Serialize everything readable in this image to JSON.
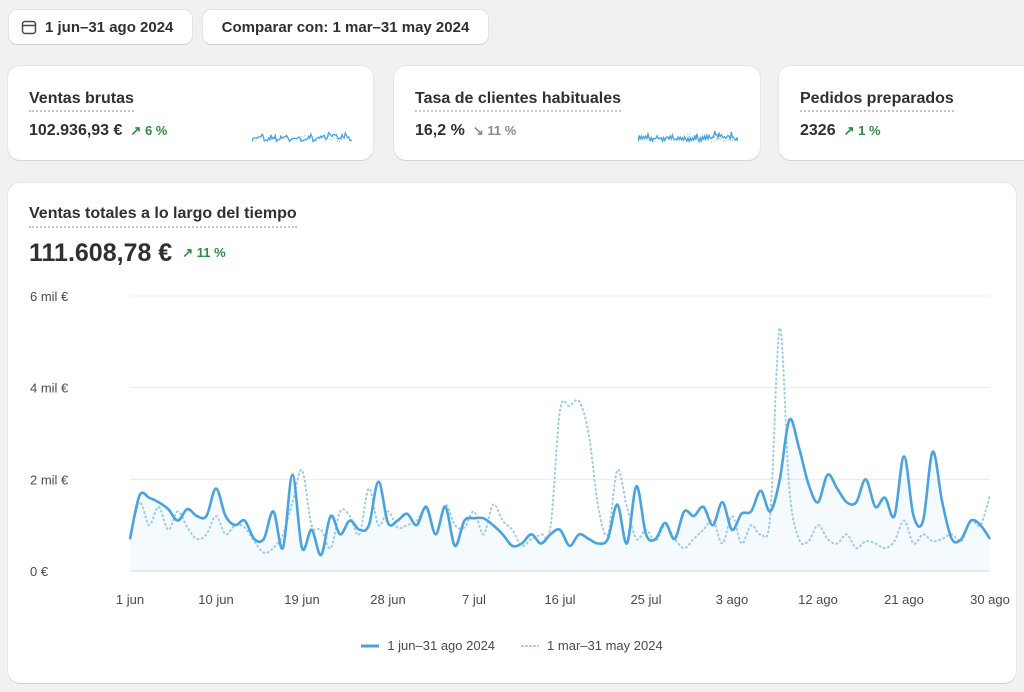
{
  "filters": {
    "date_range": "1 jun–31 ago 2024",
    "compare": "Comparar con: 1 mar–31 may 2024"
  },
  "kpis": [
    {
      "label": "Ventas brutas",
      "value": "102.936,93 €",
      "delta": "6 %",
      "trend": "up"
    },
    {
      "label": "Tasa de clientes habituales",
      "value": "16,2 %",
      "delta": "11 %",
      "trend": "down"
    },
    {
      "label": "Pedidos preparados",
      "value": "2326",
      "delta": "1 %",
      "trend": "up"
    }
  ],
  "main_chart": {
    "title": "Ventas totales a lo largo del tiempo",
    "total": "111.608,78 €",
    "delta": "11 %",
    "trend": "up"
  },
  "colors": {
    "primary": "#4aa3e0",
    "comparison": "#9ccbe8",
    "positive": "#2e8b47",
    "neutral": "#8a8a8a"
  },
  "chart_data": {
    "type": "line",
    "ylim": [
      0,
      6000
    ],
    "y_ticks": [
      "0 €",
      "2 mil €",
      "4 mil €",
      "6 mil €"
    ],
    "y_tick_values": [
      0,
      2000,
      4000,
      6000
    ],
    "x_tick_labels": [
      "1 jun",
      "10 jun",
      "19 jun",
      "28 jun",
      "7 jul",
      "16 jul",
      "25 jul",
      "3 ago",
      "12 ago",
      "21 ago",
      "30 ago"
    ],
    "x_tick_days": [
      0,
      9,
      18,
      27,
      36,
      45,
      54,
      63,
      72,
      81,
      90
    ],
    "series": [
      {
        "name": "1 jun–31 ago 2024",
        "style": "solid",
        "values": [
          700,
          1650,
          1600,
          1500,
          1350,
          1100,
          1350,
          1200,
          1200,
          1800,
          1200,
          1000,
          1100,
          700,
          700,
          1300,
          500,
          2100,
          500,
          900,
          350,
          1200,
          800,
          1100,
          900,
          1000,
          1950,
          1050,
          1100,
          1250,
          1000,
          1400,
          800,
          1400,
          550,
          1100,
          1150,
          1150,
          1000,
          800,
          550,
          600,
          800,
          600,
          800,
          900,
          550,
          800,
          700,
          600,
          700,
          1450,
          600,
          1850,
          800,
          700,
          1050,
          700,
          1300,
          1200,
          1400,
          1000,
          1500,
          900,
          1250,
          1300,
          1750,
          1300,
          2000,
          3300,
          2700,
          1900,
          1500,
          2100,
          1800,
          1500,
          1500,
          2000,
          1400,
          1600,
          1200,
          2500,
          1200,
          1100,
          2600,
          1500,
          700,
          700,
          1100,
          1000,
          700
        ]
      },
      {
        "name": "1 mar–31 may 2024",
        "style": "dotted",
        "values": [
          700,
          1500,
          1000,
          1400,
          900,
          1300,
          950,
          700,
          800,
          1200,
          800,
          1000,
          950,
          650,
          400,
          500,
          800,
          1500,
          2200,
          1000,
          900,
          500,
          1300,
          1200,
          800,
          1800,
          1000,
          1300,
          950,
          1000,
          1100,
          1350,
          800,
          1450,
          1000,
          950,
          1300,
          800,
          1450,
          1100,
          900,
          550,
          700,
          800,
          950,
          3500,
          3600,
          3700,
          3000,
          1400,
          800,
          2200,
          1400,
          700,
          900,
          650,
          1000,
          700,
          500,
          700,
          900,
          1100,
          600,
          1200,
          600,
          1000,
          800,
          1200,
          5300,
          1800,
          700,
          650,
          1000,
          700,
          600,
          800,
          500,
          650,
          600,
          500,
          650,
          1100,
          600,
          800,
          650,
          700,
          800,
          650,
          1100,
          1000,
          1650
        ]
      }
    ]
  }
}
